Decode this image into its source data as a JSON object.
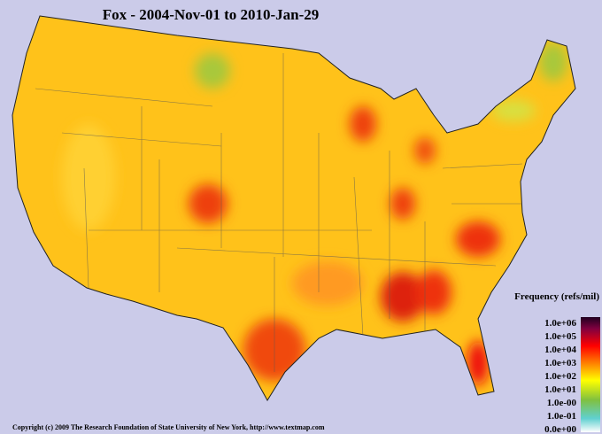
{
  "title": "Fox - 2004-Nov-01 to 2010-Jan-29",
  "legend": {
    "title": "Frequency (refs/mil)",
    "labels": [
      "1.0e+06",
      "1.0e+05",
      "1.0e+04",
      "1.0e+03",
      "1.0e+02",
      "1.0e+01",
      "1.0e-00",
      "1.0e-01",
      "0.0e+00"
    ]
  },
  "copyright": "Copyright (c) 2009 The Research Foundation of State University of New York, http://www.textmap.com"
}
